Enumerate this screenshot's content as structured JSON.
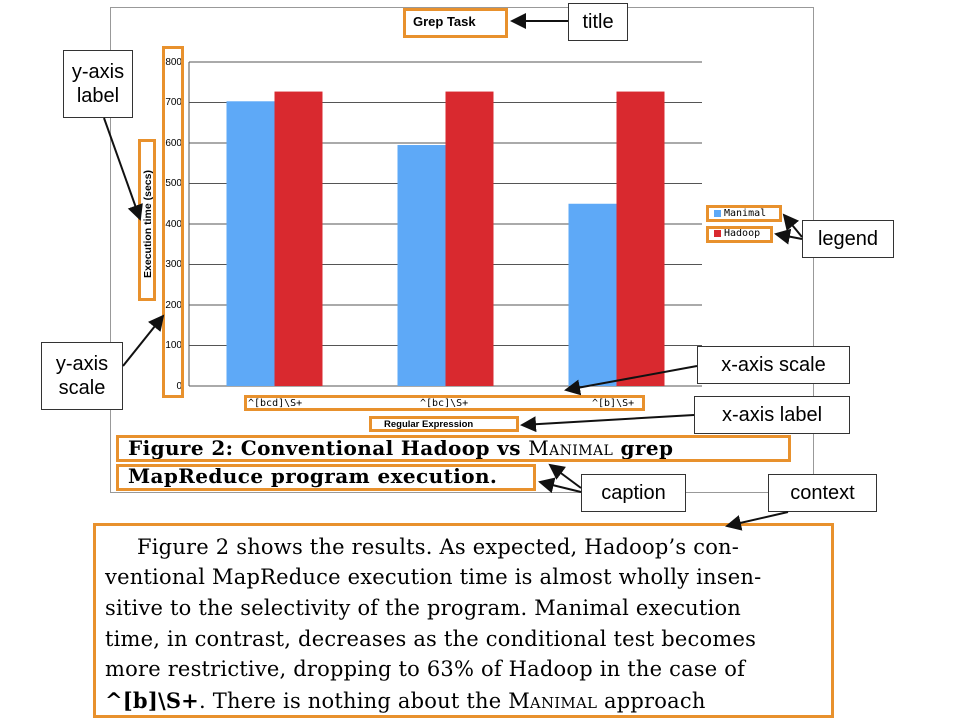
{
  "chart_data": {
    "type": "bar",
    "title": "Grep Task",
    "ylabel": "Execution time (secs)",
    "xlabel": "Regular Expression",
    "categories": [
      "^[bcd]\\S+",
      "^[bc]\\S+",
      "^[b]\\S+"
    ],
    "series": [
      {
        "name": "Manimal",
        "values": [
          703,
          595,
          450
        ]
      },
      {
        "name": "Hadoop",
        "values": [
          727,
          727,
          727
        ]
      }
    ],
    "ylim": [
      0,
      800
    ],
    "yticks": [
      0,
      100,
      200,
      300,
      400,
      500,
      600,
      700,
      800
    ],
    "grid": true,
    "legend": "right"
  },
  "colors": {
    "manimal": "#5ea9f7",
    "hadoop": "#d9292f",
    "annotation_box": "#e8912d",
    "grid": "#555555"
  },
  "annotations": {
    "title": "title",
    "y_axis_label": "y-axis label",
    "legend": "legend",
    "y_axis_scale": "y-axis scale",
    "x_axis_scale": "x-axis scale",
    "x_axis_label": "x-axis label",
    "caption": "caption",
    "context": "context"
  },
  "caption": {
    "line1_a": "Figure 2:  Conventional Hadoop vs ",
    "line1_sc": "Manimal",
    "line1_b": " grep",
    "line2": "MapReduce program execution."
  },
  "context": {
    "line1": "Figure 2 shows the results.  As expected, Hadoop’s con-",
    "line2": "ventional MapReduce execution time is almost wholly insen-",
    "line3": "sitive to the selectivity of the program.  Manimal execution",
    "line4": "time, in contrast, decreases as the conditional test becomes",
    "line5": "more restrictive, dropping to 63% of Hadoop in the case of",
    "line6_a": "^[b]\\S+",
    "line6_b": ".  There is nothing about the ",
    "line6_sc": "Manimal",
    "line6_c": " approach"
  }
}
